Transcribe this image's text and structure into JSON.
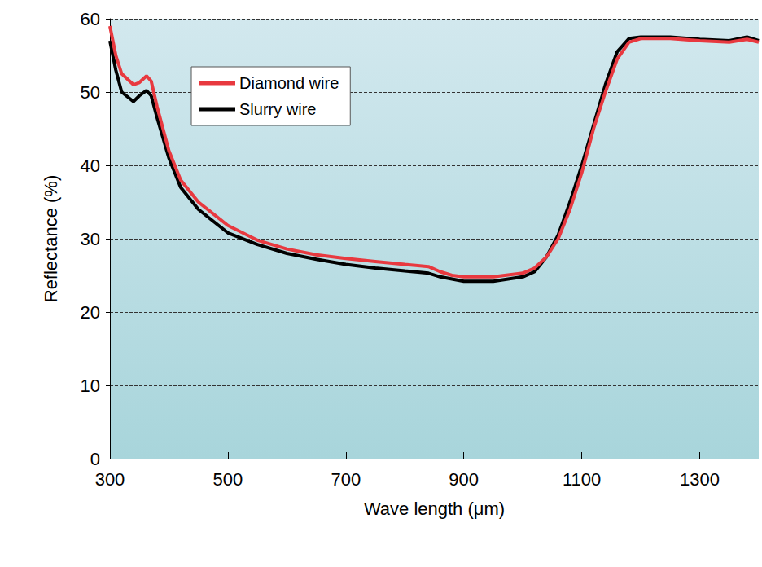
{
  "chart_data": {
    "type": "line",
    "x_label": "Wave length (μm)",
    "y_label": "Reflectance (%)",
    "x": [
      300,
      310,
      320,
      340,
      350,
      362,
      370,
      380,
      400,
      420,
      450,
      500,
      550,
      600,
      650,
      700,
      750,
      800,
      840,
      860,
      880,
      900,
      950,
      1000,
      1020,
      1040,
      1060,
      1080,
      1100,
      1120,
      1140,
      1160,
      1180,
      1200,
      1250,
      1300,
      1350,
      1380,
      1400
    ],
    "series": [
      {
        "name": "Diamond wire",
        "color": "#e8393f",
        "values": [
          59,
          55,
          52.5,
          51,
          51.3,
          52.2,
          51.5,
          48,
          42,
          38,
          35,
          31.8,
          29.8,
          28.6,
          27.8,
          27.3,
          26.9,
          26.5,
          26.2,
          25.5,
          25,
          24.8,
          24.8,
          25.3,
          26,
          27.5,
          30,
          34,
          39,
          45,
          50,
          54.5,
          56.8,
          57.3,
          57.3,
          57,
          56.8,
          57.2,
          56.8
        ]
      },
      {
        "name": "Slurry wire",
        "color": "#000000",
        "values": [
          57,
          53,
          50,
          48.7,
          49.5,
          50.2,
          49.5,
          46.5,
          41,
          37,
          34,
          30.8,
          29.2,
          28,
          27.2,
          26.5,
          26,
          25.6,
          25.3,
          24.8,
          24.5,
          24.2,
          24.2,
          24.8,
          25.5,
          27.5,
          30.5,
          35,
          40,
          45.5,
          51,
          55.5,
          57.3,
          57.5,
          57.5,
          57.2,
          57,
          57.5,
          57
        ]
      }
    ],
    "xlim": [
      300,
      1400
    ],
    "xticks": [
      300,
      500,
      700,
      900,
      1100,
      1300
    ],
    "ylim": [
      0,
      60
    ],
    "yticks": [
      0,
      10,
      20,
      30,
      40,
      50,
      60
    ],
    "grid": true,
    "legend": "upper left"
  }
}
